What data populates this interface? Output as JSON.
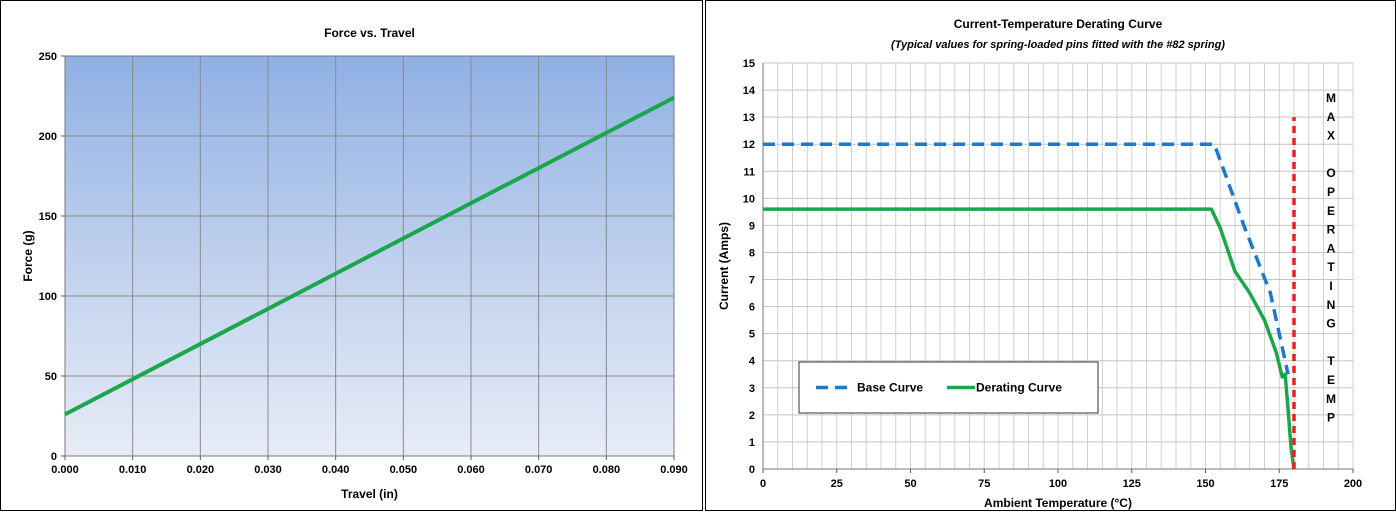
{
  "chart_data": [
    {
      "type": "line",
      "title": "Force vs. Travel",
      "xlabel": "Travel (in)",
      "ylabel": "Force (g)",
      "xlim": [
        0,
        0.09
      ],
      "ylim": [
        0,
        250
      ],
      "x_ticks": [
        "0.000",
        "0.010",
        "0.020",
        "0.030",
        "0.040",
        "0.050",
        "0.060",
        "0.070",
        "0.080",
        "0.090"
      ],
      "y_ticks": [
        "0",
        "50",
        "100",
        "150",
        "200",
        "250"
      ],
      "grid": true,
      "background": "gradient blue",
      "series": [
        {
          "color": "#1ca64c",
          "x": [
            0.0,
            0.09
          ],
          "y": [
            26,
            224
          ]
        }
      ]
    },
    {
      "type": "line",
      "title": "Current-Temperature Derating Curve",
      "subtitle": "(Typical values for spring-loaded pins fitted with the #82 spring)",
      "xlabel": "Ambient Temperature (°C)",
      "ylabel": "Current (Amps)",
      "xlim": [
        0,
        200
      ],
      "ylim": [
        0,
        15
      ],
      "x_ticks": [
        "0",
        "25",
        "50",
        "75",
        "100",
        "125",
        "150",
        "175",
        "200"
      ],
      "y_ticks": [
        "0",
        "1",
        "2",
        "3",
        "4",
        "5",
        "6",
        "7",
        "8",
        "9",
        "10",
        "11",
        "12",
        "13",
        "14",
        "15"
      ],
      "grid": true,
      "legend_position": "bottom-left",
      "series": [
        {
          "name": "Base Curve",
          "color": "#1f78c8",
          "style": "dashed",
          "x": [
            0,
            153,
            163,
            172,
            178
          ],
          "y": [
            12,
            12,
            9,
            6.5,
            3.5
          ]
        },
        {
          "name": "Derating Curve",
          "color": "#1ca64c",
          "style": "solid",
          "x": [
            0,
            152,
            155,
            160,
            165,
            170,
            174,
            176,
            177,
            178,
            179,
            180
          ],
          "y": [
            9.6,
            9.6,
            8.9,
            7.3,
            6.5,
            5.5,
            4.3,
            3.4,
            3.5,
            2.2,
            0.8,
            0
          ]
        },
        {
          "color": "#e8211d",
          "style": "dashed",
          "x": [
            180,
            180
          ],
          "y": [
            0,
            13
          ]
        }
      ],
      "vertical_annotation": [
        "M",
        "A",
        "X",
        "",
        "O",
        "P",
        "E",
        "R",
        "A",
        "T",
        "I",
        "N",
        "G",
        "",
        "T",
        "E",
        "M",
        "P"
      ]
    }
  ]
}
